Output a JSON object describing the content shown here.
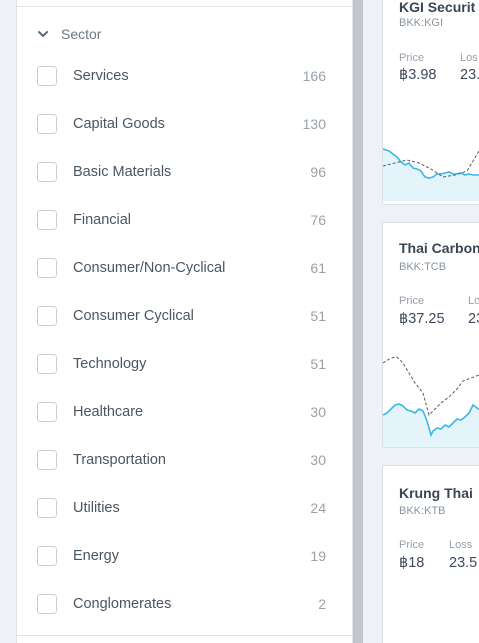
{
  "filter": {
    "section_title": "Sector",
    "items": [
      {
        "label": "Services",
        "count": "166"
      },
      {
        "label": "Capital Goods",
        "count": "130"
      },
      {
        "label": "Basic Materials",
        "count": "96"
      },
      {
        "label": "Financial",
        "count": "76"
      },
      {
        "label": "Consumer/Non-Cyclical",
        "count": "61"
      },
      {
        "label": "Consumer Cyclical",
        "count": "51"
      },
      {
        "label": "Technology",
        "count": "51"
      },
      {
        "label": "Healthcare",
        "count": "30"
      },
      {
        "label": "Transportation",
        "count": "30"
      },
      {
        "label": "Utilities",
        "count": "24"
      },
      {
        "label": "Energy",
        "count": "19"
      },
      {
        "label": "Conglomerates",
        "count": "2"
      }
    ]
  },
  "cards": [
    {
      "name": "KGI Securit",
      "ticker": "BKK:KGI",
      "price_label": "Price",
      "price": "฿3.98",
      "loss_label": "Los",
      "loss": "23."
    },
    {
      "name": "Thai Carbon",
      "ticker": "BKK:TCB",
      "price_label": "Price",
      "price": "฿37.25",
      "loss_label": "Lo",
      "loss": "23"
    },
    {
      "name": "Krung Thai",
      "ticker": "BKK:KTB",
      "price_label": "Price",
      "price": "฿18",
      "loss_label": "Loss",
      "loss": "23.5"
    }
  ],
  "colors": {
    "spark_line": "#3fb6e8",
    "spark_fill": "#e4f4fb",
    "dashed": "#555e66"
  },
  "icons": {
    "section_toggle": "chevron-down-icon"
  }
}
